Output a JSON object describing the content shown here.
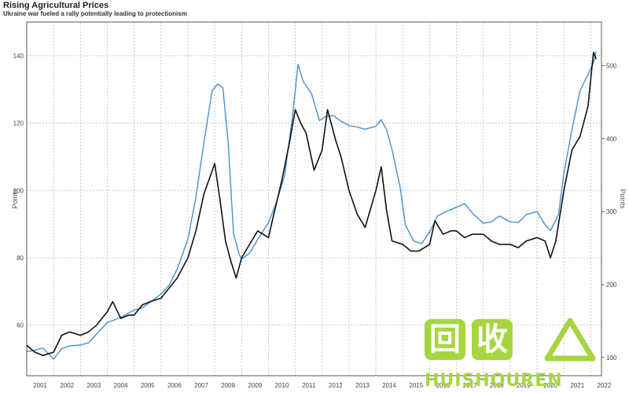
{
  "header": {
    "title": "Rising Agricultural Prices",
    "subtitle": "Ukraine war fueled a rally potentially leading to protectionism"
  },
  "colors": {
    "series_black": "#111111",
    "series_blue": "#4a90d0",
    "grid": "#bbbbbb"
  },
  "watermark": {
    "glyph_1": "回",
    "glyph_2": "收",
    "text": "HUISHOUREN"
  },
  "chart_data": {
    "type": "line",
    "title": "Rising Agricultural Prices",
    "subtitle": "Ukraine war fueled a rally potentially leading to protectionism",
    "xlabel": "",
    "ylabel_left": "Points",
    "ylabel_right": "Points",
    "x_ticks": [
      "2001",
      "2002",
      "2003",
      "2004",
      "2005",
      "2006",
      "2007",
      "2008",
      "2009",
      "2010",
      "2011",
      "2012",
      "2013",
      "2014",
      "2015",
      "2016",
      "2017",
      "2018",
      "2019",
      "2020",
      "2021",
      "2022"
    ],
    "xlim": [
      2001,
      2022.4
    ],
    "ylim_left": [
      45,
      150
    ],
    "yticks_left": [
      60,
      80,
      100,
      120,
      140
    ],
    "ylim_right": [
      75,
      560
    ],
    "yticks_right": [
      100,
      200,
      300,
      400,
      500
    ],
    "grid": true,
    "series": [
      {
        "axis": "left",
        "color": "#111111",
        "x": [
          2001.0,
          2001.3,
          2001.6,
          2002.0,
          2002.3,
          2002.6,
          2003.0,
          2003.3,
          2003.6,
          2004.0,
          2004.2,
          2004.5,
          2004.8,
          2005.0,
          2005.3,
          2005.6,
          2006.0,
          2006.3,
          2006.6,
          2007.0,
          2007.3,
          2007.6,
          2008.0,
          2008.2,
          2008.4,
          2008.6,
          2008.8,
          2009.0,
          2009.3,
          2009.6,
          2010.0,
          2010.2,
          2010.5,
          2010.8,
          2011.0,
          2011.2,
          2011.4,
          2011.7,
          2012.0,
          2012.2,
          2012.5,
          2012.7,
          2013.0,
          2013.3,
          2013.6,
          2014.0,
          2014.2,
          2014.4,
          2014.6,
          2015.0,
          2015.3,
          2015.6,
          2016.0,
          2016.2,
          2016.5,
          2016.8,
          2017.0,
          2017.3,
          2017.6,
          2018.0,
          2018.3,
          2018.6,
          2019.0,
          2019.3,
          2019.6,
          2020.0,
          2020.3,
          2020.5,
          2020.7,
          2021.0,
          2021.3,
          2021.6,
          2021.9,
          2022.1,
          2022.2
        ],
        "y": [
          54,
          52,
          51,
          52,
          57,
          58,
          57,
          58,
          60,
          64,
          67,
          62,
          63,
          63,
          66,
          67,
          68,
          71,
          74,
          80,
          88,
          99,
          108,
          97,
          85,
          79,
          74,
          80,
          84,
          88,
          86,
          93,
          103,
          115,
          124,
          120,
          117,
          106,
          112,
          124,
          115,
          110,
          100,
          93,
          89,
          100,
          107,
          94,
          85,
          84,
          82,
          82,
          84,
          91,
          87,
          88,
          88,
          86,
          87,
          87,
          85,
          84,
          84,
          83,
          85,
          86,
          85,
          80,
          85,
          100,
          112,
          116,
          125,
          141,
          139
        ]
      },
      {
        "axis": "right",
        "color": "#4a90d0",
        "x": [
          2001.0,
          2001.3,
          2001.6,
          2002.0,
          2002.3,
          2002.6,
          2003.0,
          2003.3,
          2003.6,
          2004.0,
          2004.3,
          2004.6,
          2005.0,
          2005.3,
          2005.6,
          2006.0,
          2006.3,
          2006.6,
          2007.0,
          2007.3,
          2007.6,
          2007.9,
          2008.1,
          2008.3,
          2008.5,
          2008.7,
          2008.9,
          2009.0,
          2009.3,
          2009.6,
          2010.0,
          2010.3,
          2010.6,
          2010.9,
          2011.1,
          2011.3,
          2011.6,
          2011.9,
          2012.1,
          2012.4,
          2012.7,
          2013.0,
          2013.3,
          2013.6,
          2014.0,
          2014.2,
          2014.4,
          2014.6,
          2014.9,
          2015.1,
          2015.4,
          2015.7,
          2016.0,
          2016.3,
          2016.6,
          2017.0,
          2017.3,
          2017.6,
          2018.0,
          2018.3,
          2018.6,
          2019.0,
          2019.3,
          2019.6,
          2020.0,
          2020.3,
          2020.5,
          2020.8,
          2021.0,
          2021.3,
          2021.6,
          2021.9,
          2022.1,
          2022.2
        ],
        "y": [
          108,
          110,
          113,
          98,
          112,
          116,
          117,
          120,
          132,
          148,
          152,
          157,
          165,
          168,
          176,
          187,
          199,
          221,
          262,
          320,
          395,
          465,
          475,
          470,
          395,
          270,
          242,
          235,
          243,
          262,
          285,
          313,
          349,
          432,
          502,
          478,
          462,
          425,
          430,
          432,
          424,
          418,
          416,
          413,
          417,
          426,
          412,
          385,
          334,
          282,
          260,
          256,
          272,
          294,
          300,
          306,
          311,
          298,
          284,
          286,
          294,
          286,
          285,
          296,
          300,
          282,
          274,
          296,
          353,
          412,
          466,
          488,
          504,
          520
        ]
      }
    ]
  }
}
